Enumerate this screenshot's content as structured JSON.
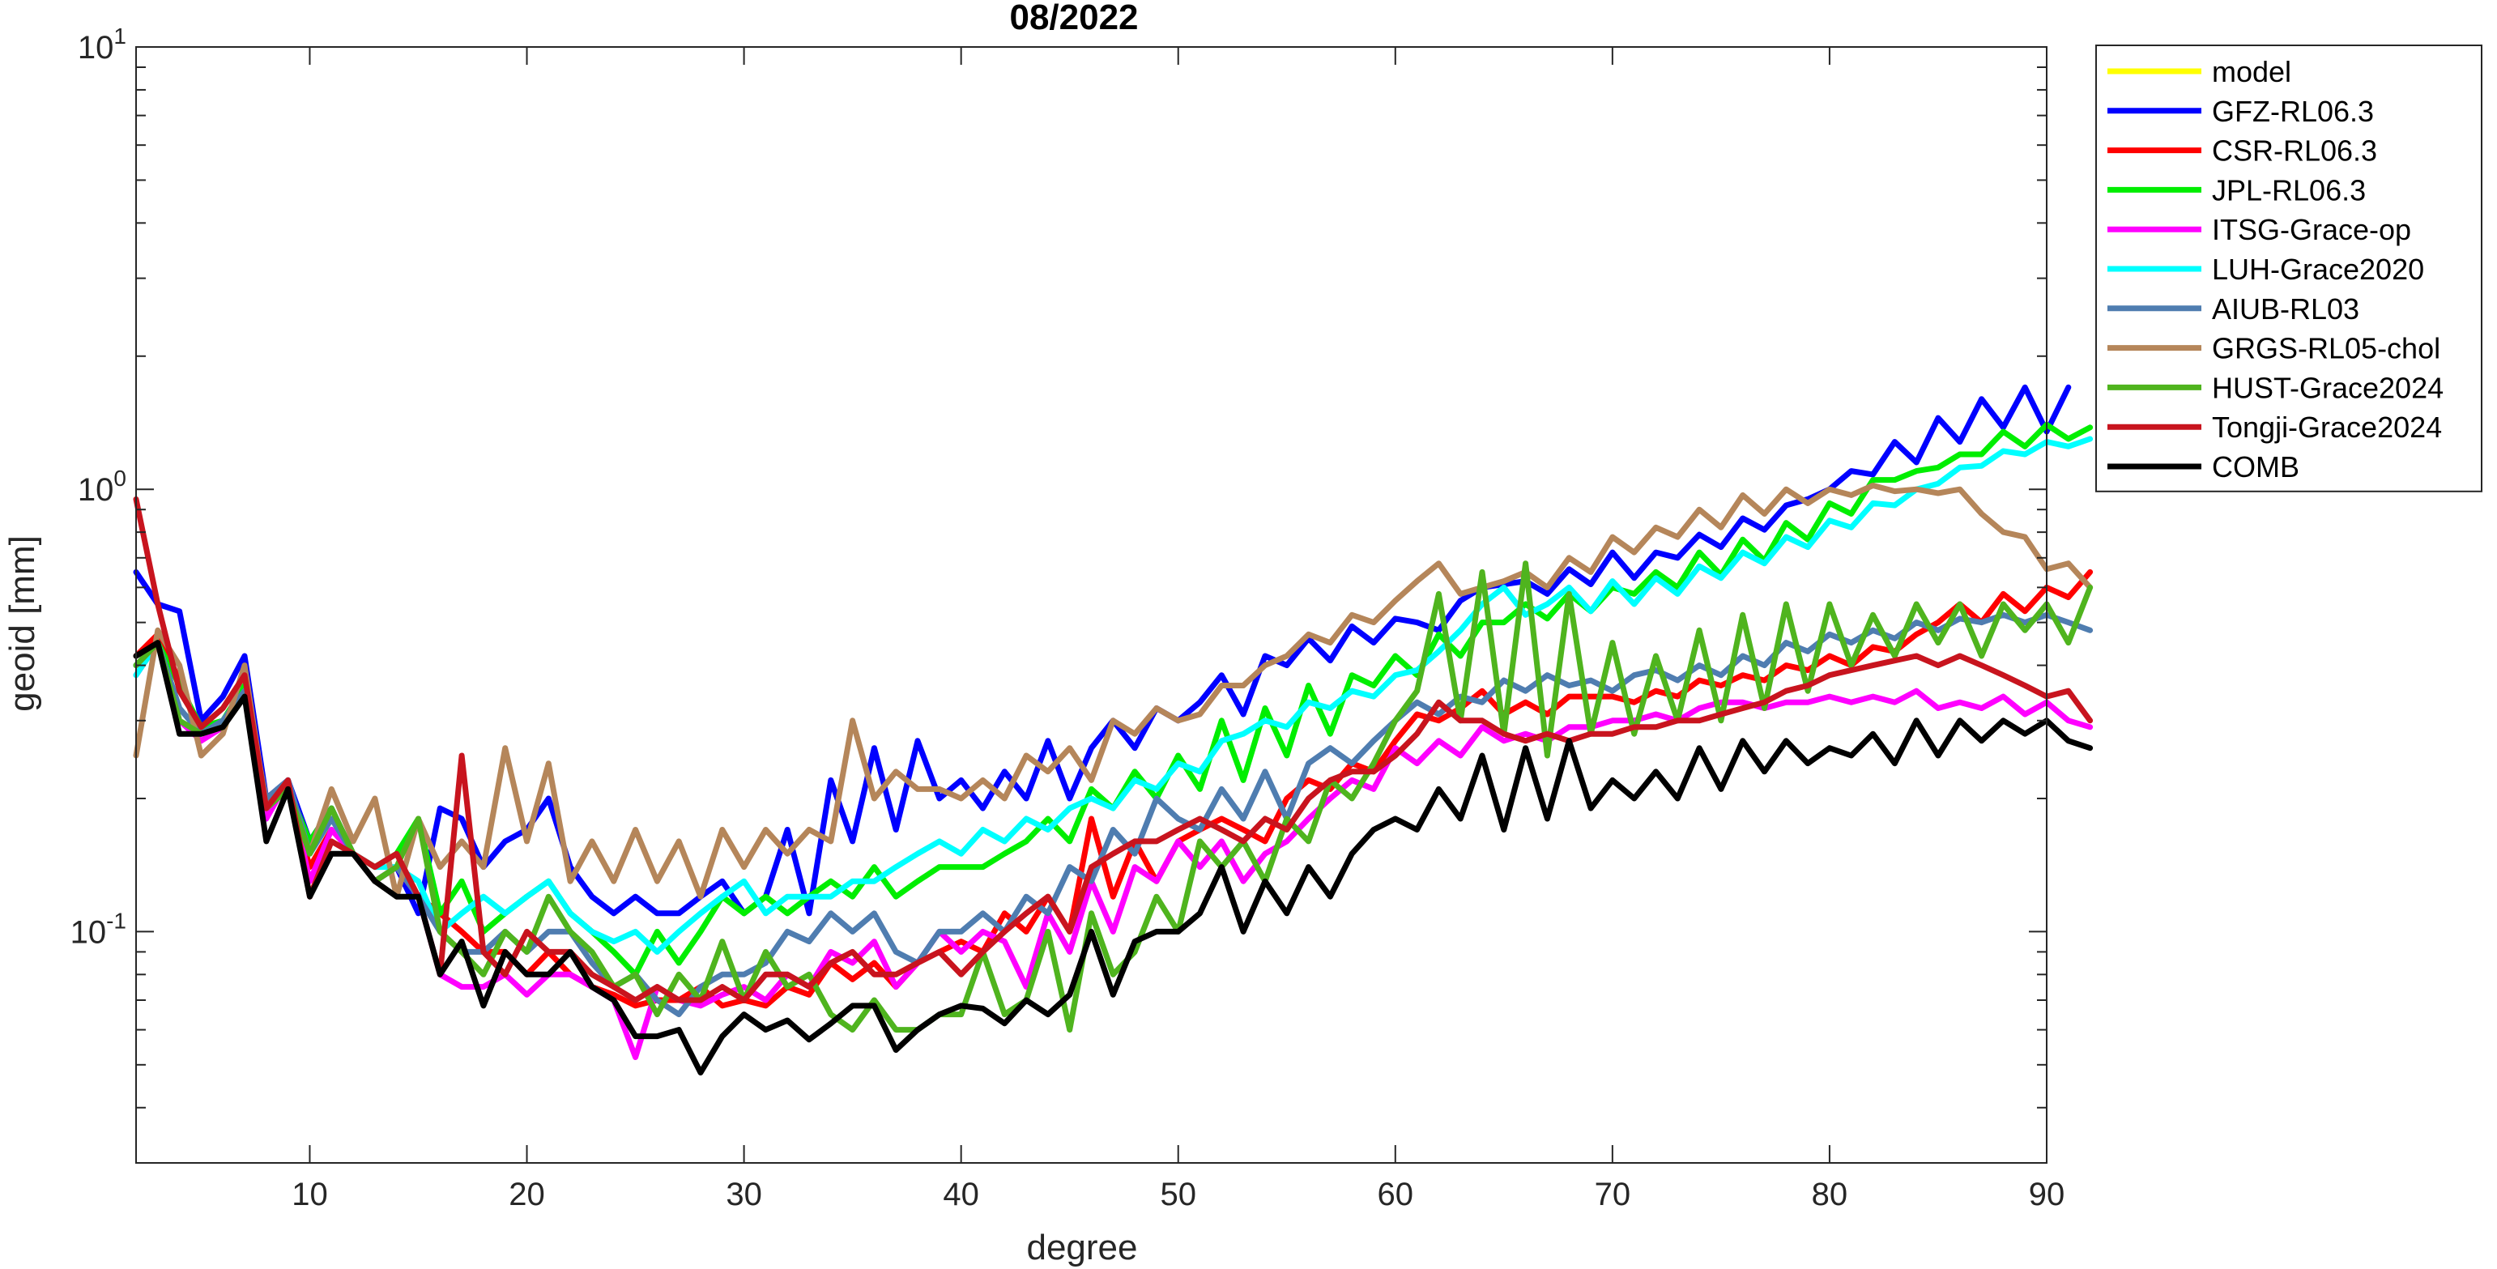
{
  "chart_data": {
    "type": "line",
    "title": "08/2022",
    "xlabel": "degree",
    "ylabel": "geoid [mm]",
    "xlim": [
      2,
      90
    ],
    "ylim": [
      0.03,
      10
    ],
    "yscale": "log",
    "grid": false,
    "legend_position": "outside-top-right",
    "x_ticks": [
      10,
      20,
      30,
      40,
      50,
      60,
      70,
      80,
      90
    ],
    "y_ticks": [
      {
        "value": 0.1,
        "base": "10",
        "exp": "-1"
      },
      {
        "value": 1,
        "base": "10",
        "exp": "0"
      },
      {
        "value": 10,
        "base": "10",
        "exp": "1"
      }
    ],
    "x_start": 2,
    "series": [
      {
        "name": "model",
        "color": "#FFFF00",
        "values": []
      },
      {
        "name": "GFZ-RL06.3",
        "color": "#0000FF",
        "values": [
          0.65,
          0.55,
          0.53,
          0.3,
          0.34,
          0.42,
          0.2,
          0.22,
          0.16,
          0.19,
          0.15,
          0.13,
          0.14,
          0.11,
          0.19,
          0.18,
          0.14,
          0.16,
          0.17,
          0.2,
          0.14,
          0.12,
          0.11,
          0.12,
          0.11,
          0.11,
          0.12,
          0.13,
          0.11,
          0.12,
          0.17,
          0.11,
          0.22,
          0.16,
          0.26,
          0.17,
          0.27,
          0.2,
          0.22,
          0.19,
          0.23,
          0.2,
          0.27,
          0.2,
          0.26,
          0.3,
          0.26,
          0.32,
          0.3,
          0.33,
          0.38,
          0.31,
          0.42,
          0.4,
          0.46,
          0.41,
          0.49,
          0.45,
          0.51,
          0.5,
          0.48,
          0.56,
          0.6,
          0.61,
          0.62,
          0.58,
          0.66,
          0.61,
          0.72,
          0.63,
          0.72,
          0.7,
          0.79,
          0.74,
          0.86,
          0.81,
          0.92,
          0.95,
          1.0,
          1.1,
          1.08,
          1.28,
          1.15,
          1.45,
          1.28,
          1.6,
          1.38,
          1.7,
          1.35,
          1.7
        ]
      },
      {
        "name": "CSR-RL06.3",
        "color": "#FF0000",
        "values": [
          0.42,
          0.47,
          0.37,
          0.28,
          0.29,
          0.35,
          0.2,
          0.21,
          0.14,
          0.17,
          0.15,
          0.13,
          0.14,
          0.12,
          0.11,
          0.1,
          0.09,
          0.09,
          0.08,
          0.09,
          0.08,
          0.075,
          0.072,
          0.068,
          0.07,
          0.07,
          0.075,
          0.068,
          0.07,
          0.068,
          0.075,
          0.072,
          0.085,
          0.078,
          0.085,
          0.075,
          0.085,
          0.09,
          0.095,
          0.09,
          0.11,
          0.1,
          0.12,
          0.1,
          0.18,
          0.12,
          0.16,
          0.13,
          0.16,
          0.17,
          0.18,
          0.17,
          0.16,
          0.2,
          0.22,
          0.21,
          0.24,
          0.23,
          0.27,
          0.31,
          0.3,
          0.32,
          0.35,
          0.31,
          0.33,
          0.31,
          0.34,
          0.34,
          0.34,
          0.33,
          0.35,
          0.34,
          0.37,
          0.36,
          0.38,
          0.37,
          0.4,
          0.39,
          0.42,
          0.4,
          0.44,
          0.43,
          0.47,
          0.5,
          0.55,
          0.5,
          0.58,
          0.53,
          0.6,
          0.57,
          0.65
        ]
      },
      {
        "name": "JPL-RL06.3",
        "color": "#00EE00",
        "values": [
          0.4,
          0.45,
          0.36,
          0.29,
          0.3,
          0.36,
          0.19,
          0.21,
          0.16,
          0.19,
          0.15,
          0.14,
          0.15,
          0.18,
          0.11,
          0.13,
          0.1,
          0.11,
          0.12,
          0.13,
          0.11,
          0.1,
          0.09,
          0.08,
          0.1,
          0.085,
          0.1,
          0.12,
          0.11,
          0.12,
          0.11,
          0.12,
          0.13,
          0.12,
          0.14,
          0.12,
          0.13,
          0.14,
          0.14,
          0.14,
          0.15,
          0.16,
          0.18,
          0.16,
          0.21,
          0.19,
          0.23,
          0.2,
          0.25,
          0.21,
          0.3,
          0.22,
          0.32,
          0.25,
          0.36,
          0.28,
          0.38,
          0.36,
          0.42,
          0.38,
          0.47,
          0.42,
          0.5,
          0.5,
          0.55,
          0.51,
          0.58,
          0.53,
          0.6,
          0.58,
          0.65,
          0.6,
          0.72,
          0.64,
          0.77,
          0.69,
          0.84,
          0.77,
          0.93,
          0.88,
          1.05,
          1.05,
          1.1,
          1.12,
          1.2,
          1.2,
          1.35,
          1.25,
          1.4,
          1.3,
          1.38
        ]
      },
      {
        "name": "ITSG-Grace-op",
        "color": "#FF00FF",
        "values": [
          0.38,
          0.45,
          0.3,
          0.27,
          0.29,
          0.34,
          0.18,
          0.22,
          0.13,
          0.17,
          0.15,
          0.13,
          0.14,
          0.12,
          0.08,
          0.075,
          0.075,
          0.08,
          0.072,
          0.08,
          0.08,
          0.075,
          0.07,
          0.052,
          0.075,
          0.07,
          0.068,
          0.072,
          0.075,
          0.07,
          0.08,
          0.075,
          0.09,
          0.085,
          0.095,
          0.075,
          0.085,
          0.1,
          0.09,
          0.1,
          0.095,
          0.075,
          0.11,
          0.09,
          0.13,
          0.1,
          0.14,
          0.13,
          0.16,
          0.14,
          0.16,
          0.13,
          0.15,
          0.16,
          0.18,
          0.2,
          0.22,
          0.21,
          0.26,
          0.24,
          0.27,
          0.25,
          0.29,
          0.27,
          0.28,
          0.27,
          0.29,
          0.29,
          0.3,
          0.3,
          0.31,
          0.3,
          0.32,
          0.33,
          0.33,
          0.32,
          0.33,
          0.33,
          0.34,
          0.33,
          0.34,
          0.33,
          0.35,
          0.32,
          0.33,
          0.32,
          0.34,
          0.31,
          0.33,
          0.3,
          0.29
        ]
      },
      {
        "name": "LUH-Grace2020",
        "color": "#00FFFF",
        "values": [
          0.38,
          0.45,
          0.32,
          0.28,
          0.3,
          0.35,
          0.19,
          0.22,
          0.15,
          0.18,
          0.15,
          0.14,
          0.14,
          0.13,
          0.1,
          0.11,
          0.12,
          0.11,
          0.12,
          0.13,
          0.11,
          0.1,
          0.095,
          0.1,
          0.09,
          0.1,
          0.11,
          0.12,
          0.13,
          0.11,
          0.12,
          0.12,
          0.12,
          0.13,
          0.13,
          0.14,
          0.15,
          0.16,
          0.15,
          0.17,
          0.16,
          0.18,
          0.17,
          0.19,
          0.2,
          0.19,
          0.22,
          0.21,
          0.24,
          0.23,
          0.27,
          0.28,
          0.3,
          0.29,
          0.33,
          0.32,
          0.35,
          0.34,
          0.38,
          0.39,
          0.43,
          0.48,
          0.55,
          0.6,
          0.52,
          0.55,
          0.6,
          0.53,
          0.62,
          0.55,
          0.63,
          0.58,
          0.67,
          0.63,
          0.72,
          0.68,
          0.78,
          0.74,
          0.85,
          0.82,
          0.93,
          0.92,
          1.0,
          1.03,
          1.12,
          1.13,
          1.22,
          1.2,
          1.28,
          1.25,
          1.3
        ]
      },
      {
        "name": "AIUB-RL03",
        "color": "#4F7DB0",
        "values": [
          0.4,
          0.45,
          0.32,
          0.28,
          0.3,
          0.35,
          0.2,
          0.22,
          0.15,
          0.18,
          0.15,
          0.13,
          0.14,
          0.12,
          0.1,
          0.09,
          0.09,
          0.1,
          0.09,
          0.1,
          0.1,
          0.085,
          0.075,
          0.08,
          0.07,
          0.065,
          0.075,
          0.08,
          0.08,
          0.085,
          0.1,
          0.095,
          0.11,
          0.1,
          0.11,
          0.09,
          0.085,
          0.1,
          0.1,
          0.11,
          0.1,
          0.12,
          0.11,
          0.14,
          0.13,
          0.17,
          0.15,
          0.2,
          0.18,
          0.17,
          0.21,
          0.18,
          0.23,
          0.18,
          0.24,
          0.26,
          0.24,
          0.27,
          0.3,
          0.33,
          0.31,
          0.34,
          0.33,
          0.37,
          0.35,
          0.38,
          0.36,
          0.37,
          0.35,
          0.38,
          0.39,
          0.37,
          0.4,
          0.38,
          0.42,
          0.4,
          0.45,
          0.43,
          0.47,
          0.45,
          0.48,
          0.46,
          0.5,
          0.48,
          0.51,
          0.5,
          0.52,
          0.5,
          0.52,
          0.5,
          0.48
        ]
      },
      {
        "name": "GRGS-RL05-chol",
        "color": "#B5865A",
        "values": [
          0.25,
          0.48,
          0.4,
          0.25,
          0.28,
          0.4,
          0.19,
          0.21,
          0.15,
          0.21,
          0.16,
          0.2,
          0.12,
          0.18,
          0.14,
          0.16,
          0.14,
          0.26,
          0.16,
          0.24,
          0.13,
          0.16,
          0.13,
          0.17,
          0.13,
          0.16,
          0.12,
          0.17,
          0.14,
          0.17,
          0.15,
          0.17,
          0.16,
          0.3,
          0.2,
          0.23,
          0.21,
          0.21,
          0.2,
          0.22,
          0.2,
          0.25,
          0.23,
          0.26,
          0.22,
          0.3,
          0.28,
          0.32,
          0.3,
          0.31,
          0.36,
          0.36,
          0.4,
          0.42,
          0.47,
          0.45,
          0.52,
          0.5,
          0.56,
          0.62,
          0.68,
          0.58,
          0.6,
          0.62,
          0.65,
          0.6,
          0.7,
          0.65,
          0.78,
          0.72,
          0.82,
          0.78,
          0.9,
          0.82,
          0.97,
          0.88,
          1.0,
          0.93,
          1.0,
          0.97,
          1.02,
          0.99,
          1.0,
          0.98,
          1.0,
          0.88,
          0.8,
          0.78,
          0.66,
          0.68,
          0.6
        ]
      },
      {
        "name": "HUST-Grace2024",
        "color": "#4FB41E",
        "values": [
          0.4,
          0.45,
          0.3,
          0.28,
          0.29,
          0.34,
          0.19,
          0.21,
          0.15,
          0.19,
          0.15,
          0.13,
          0.14,
          0.18,
          0.1,
          0.09,
          0.08,
          0.1,
          0.09,
          0.12,
          0.1,
          0.09,
          0.075,
          0.08,
          0.065,
          0.08,
          0.07,
          0.095,
          0.07,
          0.09,
          0.075,
          0.08,
          0.065,
          0.06,
          0.07,
          0.06,
          0.06,
          0.065,
          0.065,
          0.09,
          0.065,
          0.07,
          0.1,
          0.06,
          0.11,
          0.08,
          0.09,
          0.12,
          0.1,
          0.16,
          0.14,
          0.16,
          0.13,
          0.18,
          0.16,
          0.22,
          0.2,
          0.24,
          0.3,
          0.35,
          0.58,
          0.3,
          0.65,
          0.28,
          0.68,
          0.25,
          0.58,
          0.28,
          0.45,
          0.28,
          0.42,
          0.3,
          0.48,
          0.3,
          0.52,
          0.32,
          0.55,
          0.35,
          0.55,
          0.4,
          0.52,
          0.42,
          0.55,
          0.45,
          0.55,
          0.42,
          0.55,
          0.48,
          0.55,
          0.45,
          0.6
        ]
      },
      {
        "name": "Tongji-Grace2024",
        "color": "#C8141E",
        "values": [
          0.95,
          0.55,
          0.35,
          0.29,
          0.32,
          0.38,
          0.19,
          0.22,
          0.12,
          0.16,
          0.15,
          0.14,
          0.15,
          0.12,
          0.08,
          0.25,
          0.09,
          0.08,
          0.1,
          0.09,
          0.09,
          0.08,
          0.075,
          0.07,
          0.075,
          0.07,
          0.07,
          0.075,
          0.07,
          0.08,
          0.08,
          0.075,
          0.085,
          0.09,
          0.08,
          0.08,
          0.085,
          0.09,
          0.08,
          0.09,
          0.1,
          0.11,
          0.12,
          0.1,
          0.14,
          0.15,
          0.16,
          0.16,
          0.17,
          0.18,
          0.17,
          0.16,
          0.18,
          0.17,
          0.2,
          0.22,
          0.23,
          0.23,
          0.25,
          0.28,
          0.33,
          0.3,
          0.3,
          0.28,
          0.27,
          0.28,
          0.27,
          0.28,
          0.28,
          0.29,
          0.29,
          0.3,
          0.3,
          0.31,
          0.32,
          0.33,
          0.35,
          0.36,
          0.38,
          0.39,
          0.4,
          0.41,
          0.42,
          0.4,
          0.42,
          0.4,
          0.38,
          0.36,
          0.34,
          0.35,
          0.3
        ]
      },
      {
        "name": "COMB",
        "color": "#000000",
        "values": [
          0.42,
          0.45,
          0.28,
          0.28,
          0.29,
          0.34,
          0.16,
          0.21,
          0.12,
          0.15,
          0.15,
          0.13,
          0.12,
          0.12,
          0.08,
          0.095,
          0.068,
          0.09,
          0.08,
          0.08,
          0.09,
          0.075,
          0.07,
          0.058,
          0.058,
          0.06,
          0.048,
          0.058,
          0.065,
          0.06,
          0.063,
          0.057,
          0.062,
          0.068,
          0.068,
          0.054,
          0.06,
          0.065,
          0.068,
          0.067,
          0.062,
          0.07,
          0.065,
          0.072,
          0.1,
          0.072,
          0.095,
          0.1,
          0.1,
          0.11,
          0.14,
          0.1,
          0.13,
          0.11,
          0.14,
          0.12,
          0.15,
          0.17,
          0.18,
          0.17,
          0.21,
          0.18,
          0.25,
          0.17,
          0.26,
          0.18,
          0.27,
          0.19,
          0.22,
          0.2,
          0.23,
          0.2,
          0.26,
          0.21,
          0.27,
          0.23,
          0.27,
          0.24,
          0.26,
          0.25,
          0.28,
          0.24,
          0.3,
          0.25,
          0.3,
          0.27,
          0.3,
          0.28,
          0.3,
          0.27,
          0.26
        ]
      }
    ]
  }
}
